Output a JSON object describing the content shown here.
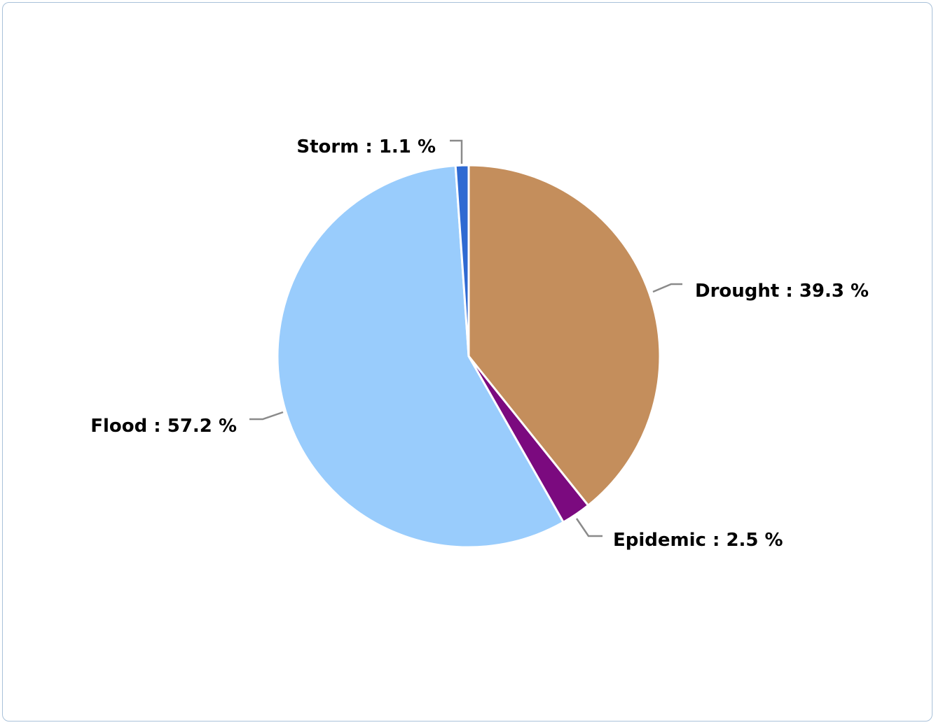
{
  "chart_data": {
    "type": "pie",
    "start_angle_deg": 0,
    "direction": "clockwise",
    "slices": [
      {
        "name": "Drought",
        "value": 39.3,
        "label": "Drought : 39.3 %",
        "color": "#c48e5c"
      },
      {
        "name": "Epidemic",
        "value": 2.5,
        "label": "Epidemic : 2.5 %",
        "color": "#7b0a7f"
      },
      {
        "name": "Flood",
        "value": 57.2,
        "label": "Flood : 57.2 %",
        "color": "#99ccfc"
      },
      {
        "name": "Storm",
        "value": 1.1,
        "label": "Storm : 1.1 %",
        "color": "#2f6ad2"
      }
    ],
    "legend": "none"
  }
}
